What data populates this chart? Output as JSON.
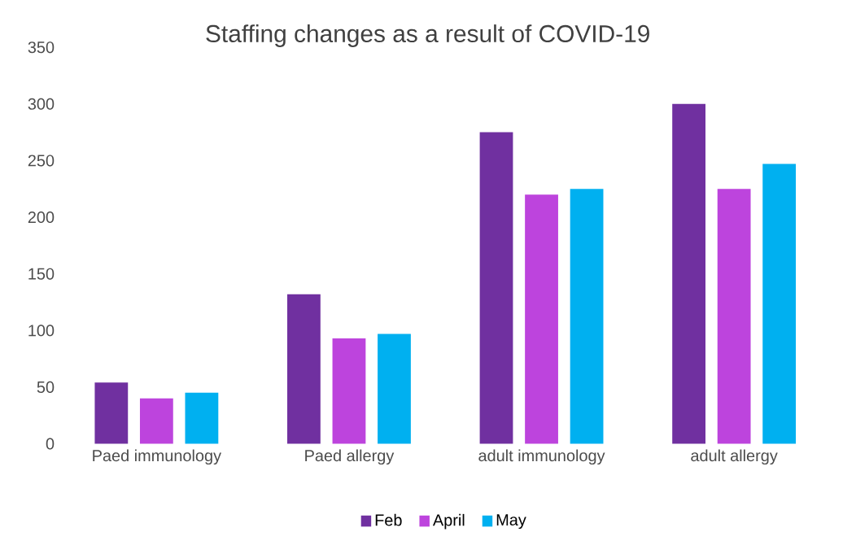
{
  "chart_data": {
    "type": "bar",
    "title": "Staffing changes as a result of COVID-19",
    "categories": [
      "Paed immunology",
      "Paed allergy",
      "adult immunology",
      "adult allergy"
    ],
    "series": [
      {
        "name": "Feb",
        "color": "#7030a0",
        "values": [
          54,
          132,
          275,
          300
        ]
      },
      {
        "name": "April",
        "color": "#bd44dd",
        "values": [
          40,
          93,
          220,
          225
        ]
      },
      {
        "name": "May",
        "color": "#00b0f0",
        "values": [
          45,
          97,
          225,
          247
        ]
      }
    ],
    "ylim": [
      0,
      350
    ],
    "yticks": [
      0,
      50,
      100,
      150,
      200,
      250,
      300,
      350
    ],
    "grid": false,
    "legend": "bottom"
  }
}
